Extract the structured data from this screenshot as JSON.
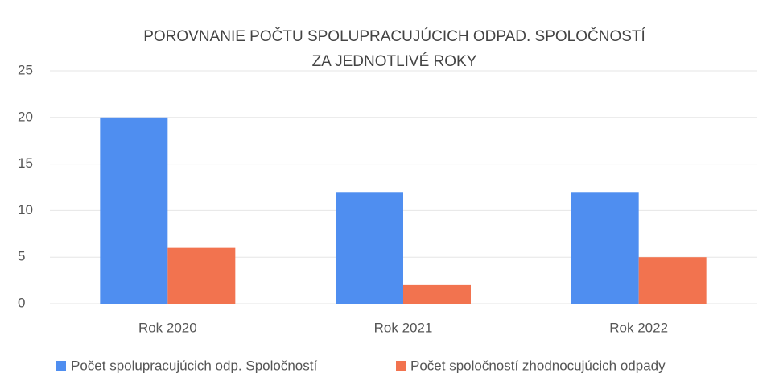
{
  "chart_data": {
    "type": "bar",
    "title": [
      "POROVNANIE POČTU SPOLUPRACUJÚCICH ODPAD. SPOLOČNOSTÍ",
      "ZA JEDNOTLIVÉ ROKY"
    ],
    "categories": [
      "Rok 2020",
      "Rok 2021",
      "Rok 2022"
    ],
    "series": [
      {
        "name": "Počet spolupracujúcich odp. Spoločností",
        "color": "#4f8ef0",
        "values": [
          20,
          12,
          12
        ]
      },
      {
        "name": "Počet spoločností zhodnocujúcich odpady",
        "color": "#f2734f",
        "values": [
          6,
          2,
          5
        ]
      }
    ],
    "ylim": [
      0,
      25
    ],
    "yticks": [
      0,
      5,
      10,
      15,
      20,
      25
    ],
    "grid": true,
    "legend": "bottom"
  }
}
